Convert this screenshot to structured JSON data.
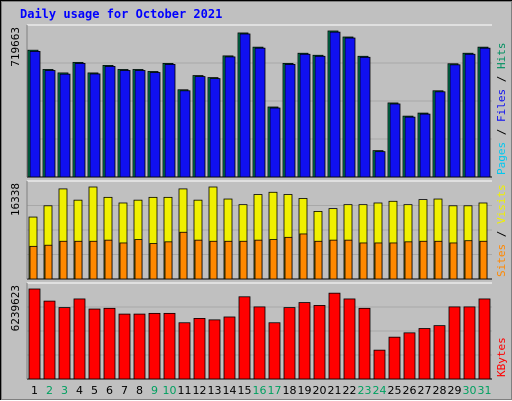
{
  "title": "Daily usage for October 2021",
  "colors": {
    "pages": "#00c8f0",
    "files": "#1010f0",
    "hits": "#009060",
    "visits": "#f0f000",
    "sites": "#ff8800",
    "kbytes": "#ff0000",
    "weekday": "#000000",
    "weekend": "#00a060"
  },
  "chart_data": {
    "type": "bar",
    "categories": [
      "1",
      "2",
      "3",
      "4",
      "5",
      "6",
      "7",
      "8",
      "9",
      "10",
      "11",
      "12",
      "13",
      "14",
      "15",
      "16",
      "17",
      "18",
      "19",
      "20",
      "21",
      "22",
      "23",
      "24",
      "25",
      "26",
      "27",
      "28",
      "29",
      "30",
      "31"
    ],
    "weekend_days": [
      "2",
      "3",
      "9",
      "10",
      "16",
      "17",
      "23",
      "24",
      "30",
      "31"
    ],
    "panels": [
      {
        "ymax_label": "719663",
        "ymax": 719663,
        "legend": [
          "Pages",
          "Files",
          "Hits"
        ],
        "series": [
          {
            "name": "Hits",
            "values": [
              625000,
              530000,
              513000,
              565000,
              513000,
              550000,
              530000,
              530000,
              520000,
              560000,
              430000,
              500000,
              490000,
              597000,
              710000,
              640000,
              345000,
              560000,
              610000,
              600000,
              719663,
              690000,
              595000,
              130000,
              365000,
              300000,
              315000,
              425000,
              558000,
              610000,
              640000
            ]
          },
          {
            "name": "Files",
            "values": [
              619000,
              525000,
              507000,
              560000,
              508000,
              545000,
              525000,
              525000,
              515000,
              555000,
              425000,
              495000,
              485000,
              592000,
              705000,
              635000,
              340000,
              555000,
              605000,
              595000,
              714000,
              685000,
              590000,
              125000,
              360000,
              295000,
              310000,
              420000,
              553000,
              605000,
              635000
            ]
          }
        ]
      },
      {
        "ymax_label": "16338",
        "ymax": 16338,
        "legend": [
          "Sites",
          "Visits"
        ],
        "series": [
          {
            "name": "Visits",
            "values": [
              11000,
              13000,
              16000,
              14000,
              16338,
              14500,
              13500,
              14000,
              14500,
              14500,
              16000,
              14000,
              16338,
              14200,
              13200,
              15000,
              15400,
              15000,
              14300,
              12000,
              12500,
              13200,
              13200,
              13500,
              13800,
              13200,
              14100,
              14200,
              13000,
              13000,
              13500
            ]
          },
          {
            "name": "Sites",
            "values": [
              5800,
              6000,
              6700,
              6700,
              6700,
              6900,
              6400,
              7000,
              6300,
              6600,
              8300,
              6900,
              6700,
              6700,
              6700,
              6900,
              7000,
              7400,
              8000,
              6700,
              6900,
              6900,
              6400,
              6400,
              6400,
              6600,
              6700,
              6700,
              6400,
              6800,
              6700
            ]
          }
        ]
      },
      {
        "ymax_label": "6239623",
        "ymax": 6239623,
        "legend": [
          "KBytes"
        ],
        "series": [
          {
            "name": "KBytes",
            "values": [
              6239623,
              5400000,
              4950000,
              5550000,
              4850000,
              4900000,
              4500000,
              4500000,
              4550000,
              4550000,
              3900000,
              4200000,
              4100000,
              4300000,
              5700000,
              5000000,
              3900000,
              4950000,
              5300000,
              5100000,
              5950000,
              5550000,
              4900000,
              2000000,
              2900000,
              3200000,
              3500000,
              3700000,
              5000000,
              5000000,
              5550000
            ]
          }
        ]
      }
    ]
  }
}
